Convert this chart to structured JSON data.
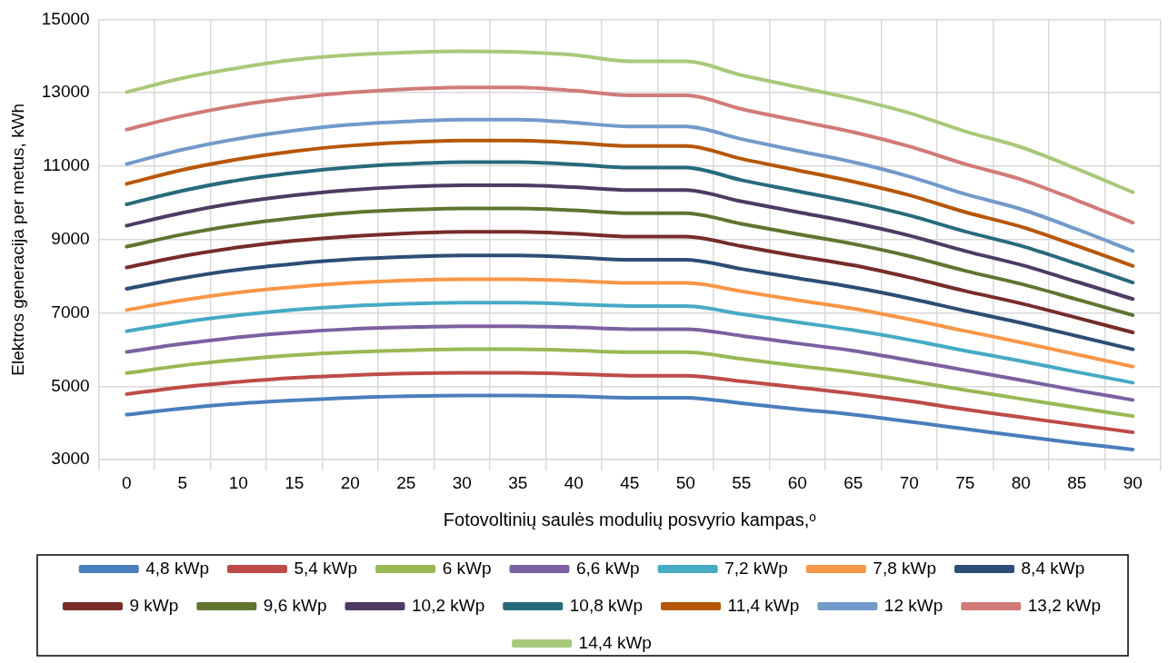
{
  "chart_data": {
    "type": "line",
    "xlabel": "Fotovoltinių saulės modulių posvyrio kampas,ᵒ",
    "ylabel": "Elektros generacija per metus, kWh",
    "categories": [
      "0",
      "5",
      "10",
      "15",
      "20",
      "25",
      "30",
      "35",
      "40",
      "45",
      "50",
      "55",
      "60",
      "65",
      "70",
      "75",
      "80",
      "85",
      "90"
    ],
    "ylim": [
      3000,
      15000
    ],
    "yticks": [
      3000,
      5000,
      7000,
      9000,
      11000,
      13000,
      15000
    ],
    "grid": true,
    "legend": "bottom",
    "marker": "none",
    "line_style": "solid",
    "series": [
      {
        "name": "4,8 kWp",
        "color": "#4a7ebb",
        "values": [
          4230,
          4400,
          4530,
          4620,
          4690,
          4730,
          4750,
          4750,
          4730,
          4690,
          4690,
          4540,
          4380,
          4230,
          4040,
          3840,
          3640,
          3450,
          3280
        ]
      },
      {
        "name": "5,4 kWp",
        "color": "#be4b48",
        "values": [
          4790,
          4980,
          5120,
          5230,
          5300,
          5350,
          5370,
          5370,
          5340,
          5290,
          5290,
          5140,
          4970,
          4800,
          4600,
          4370,
          4160,
          3950,
          3750
        ]
      },
      {
        "name": "6 kWp",
        "color": "#98b954",
        "values": [
          5360,
          5570,
          5730,
          5850,
          5930,
          5980,
          6010,
          6010,
          5980,
          5930,
          5930,
          5750,
          5560,
          5380,
          5150,
          4900,
          4660,
          4420,
          4190
        ]
      },
      {
        "name": "6,6 kWp",
        "color": "#7d60a0",
        "values": [
          5940,
          6160,
          6340,
          6470,
          6560,
          6610,
          6640,
          6640,
          6610,
          6560,
          6560,
          6380,
          6170,
          5970,
          5710,
          5440,
          5170,
          4890,
          4630
        ]
      },
      {
        "name": "7,2 kWp",
        "color": "#46aac5",
        "values": [
          6500,
          6750,
          6940,
          7090,
          7190,
          7250,
          7280,
          7280,
          7240,
          7190,
          7190,
          6970,
          6750,
          6530,
          6270,
          5970,
          5690,
          5390,
          5100
        ]
      },
      {
        "name": "7,8 kWp",
        "color": "#f79646",
        "values": [
          7080,
          7350,
          7560,
          7710,
          7820,
          7890,
          7920,
          7920,
          7880,
          7820,
          7820,
          7590,
          7350,
          7120,
          6830,
          6510,
          6200,
          5870,
          5540
        ]
      },
      {
        "name": "8,4 kWp",
        "color": "#2c4d75",
        "values": [
          7660,
          7950,
          8180,
          8340,
          8460,
          8530,
          8570,
          8570,
          8520,
          8450,
          8450,
          8200,
          7950,
          7700,
          7400,
          7060,
          6730,
          6370,
          6010
        ]
      },
      {
        "name": "9 kWp",
        "color": "#772c2a",
        "values": [
          8240,
          8550,
          8790,
          8970,
          9090,
          9170,
          9210,
          9210,
          9160,
          9080,
          9080,
          8820,
          8550,
          8300,
          7970,
          7600,
          7260,
          6870,
          6470
        ]
      },
      {
        "name": "9,6 kWp",
        "color": "#5f7530",
        "values": [
          8810,
          9140,
          9400,
          9590,
          9730,
          9810,
          9850,
          9850,
          9800,
          9720,
          9720,
          9430,
          9150,
          8880,
          8550,
          8150,
          7790,
          7370,
          6940
        ]
      },
      {
        "name": "10,2 kWp",
        "color": "#4d3b62",
        "values": [
          9380,
          9730,
          10010,
          10210,
          10350,
          10440,
          10480,
          10480,
          10430,
          10350,
          10350,
          10040,
          9750,
          9460,
          9110,
          8690,
          8310,
          7850,
          7380
        ]
      },
      {
        "name": "10,8 kWp",
        "color": "#276a7c",
        "values": [
          9960,
          10330,
          10620,
          10820,
          10970,
          11060,
          11110,
          11110,
          11050,
          10960,
          10960,
          10620,
          10320,
          10020,
          9660,
          9220,
          8830,
          8340,
          7830
        ]
      },
      {
        "name": "11,4 kWp",
        "color": "#b65708",
        "values": [
          10520,
          10900,
          11190,
          11410,
          11560,
          11650,
          11700,
          11700,
          11640,
          11550,
          11550,
          11200,
          10890,
          10580,
          10210,
          9750,
          9350,
          8830,
          8280
        ]
      },
      {
        "name": "12 kWp",
        "color": "#729aca",
        "values": [
          11060,
          11450,
          11750,
          11970,
          12130,
          12220,
          12270,
          12270,
          12190,
          12080,
          12080,
          11740,
          11420,
          11110,
          10720,
          10240,
          9830,
          9280,
          8690
        ]
      },
      {
        "name": "13,2 kWp",
        "color": "#d07b79",
        "values": [
          12000,
          12370,
          12660,
          12860,
          13010,
          13100,
          13150,
          13150,
          13060,
          12930,
          12930,
          12560,
          12240,
          11930,
          11540,
          11060,
          10640,
          10070,
          9460
        ]
      },
      {
        "name": "14,4 kWp",
        "color": "#a9c97a",
        "values": [
          13020,
          13400,
          13680,
          13900,
          14030,
          14100,
          14130,
          14110,
          14030,
          13860,
          13860,
          13480,
          13160,
          12840,
          12450,
          11950,
          11520,
          10930,
          10290
        ]
      }
    ]
  }
}
